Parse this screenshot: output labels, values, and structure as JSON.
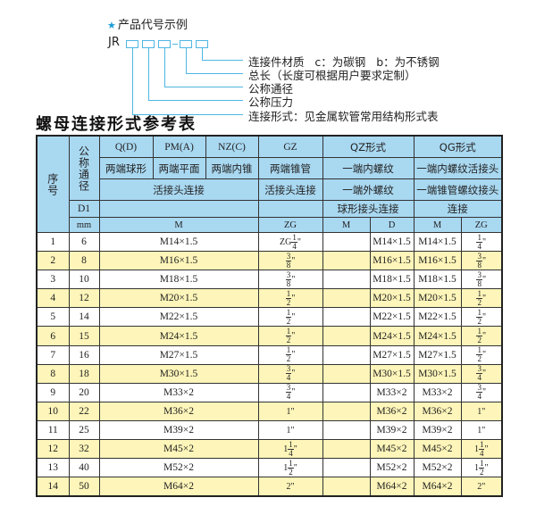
{
  "code_example": {
    "title": "产品代号示例",
    "prefix": "JR",
    "labels": [
      "连接件材质   c：为碳钢   b：为不锈钢",
      "总长（长度可根据用户要求定制）",
      "公称通径",
      "公称压力",
      "连接形式：见金属软管常用结构形式表"
    ],
    "accent_color": "#4fb6e3"
  },
  "table_title": "螺母连接形式参考表",
  "header": {
    "seq": "序号",
    "nominal": "公称通径",
    "d1": "D1",
    "mm": "mm",
    "qd": "Q(D)",
    "pm": "PM(A)",
    "nz": "NZ(C)",
    "gz": "GZ",
    "qz": "QZ形式",
    "qg": "QG形式",
    "qd_desc": "两端球形",
    "pm_desc": "两端平面",
    "nz_desc": "两端内锥",
    "gz_desc": "两端锥管",
    "qz_desc1": "一端内螺纹",
    "qg_desc1": "一端内螺纹活接头",
    "union1": "活接头连接",
    "union2": "活接头连接",
    "qz_desc2": "一端外螺纹",
    "qg_desc2": "一端锥管螺纹接头",
    "qz_desc3": "球形接头连接",
    "qg_desc3": "连接",
    "m": "M",
    "zg": "ZG",
    "qz_m": "M",
    "qz_d": "D",
    "qg_m": "M",
    "qg_zg": "ZG"
  },
  "rows": [
    {
      "no": "1",
      "d1": "6",
      "m": "M14×1.5",
      "zg": {
        "pre": "ZG",
        "num": "1",
        "den": "4",
        "suf": "\""
      },
      "qz_m": "",
      "qz_d": "M14×1.5",
      "qg_m": "M14×1.5",
      "qg_zg": {
        "pre": "",
        "num": "1",
        "den": "4",
        "suf": "\""
      }
    },
    {
      "no": "2",
      "d1": "8",
      "m": "M16×1.5",
      "zg": {
        "pre": "",
        "num": "3",
        "den": "8",
        "suf": "\""
      },
      "qz_m": "",
      "qz_d": "M16×1.5",
      "qg_m": "M16×1.5",
      "qg_zg": {
        "pre": "",
        "num": "3",
        "den": "8",
        "suf": "\""
      }
    },
    {
      "no": "3",
      "d1": "10",
      "m": "M18×1.5",
      "zg": {
        "pre": "",
        "num": "3",
        "den": "8",
        "suf": "\""
      },
      "qz_m": "",
      "qz_d": "M18×1.5",
      "qg_m": "M18×1.5",
      "qg_zg": {
        "pre": "",
        "num": "3",
        "den": "8",
        "suf": "\""
      }
    },
    {
      "no": "4",
      "d1": "12",
      "m": "M20×1.5",
      "zg": {
        "pre": "",
        "num": "1",
        "den": "2",
        "suf": "\""
      },
      "qz_m": "",
      "qz_d": "M20×1.5",
      "qg_m": "M20×1.5",
      "qg_zg": {
        "pre": "",
        "num": "1",
        "den": "2",
        "suf": "\""
      }
    },
    {
      "no": "5",
      "d1": "14",
      "m": "M22×1.5",
      "zg": {
        "pre": "",
        "num": "1",
        "den": "2",
        "suf": "\""
      },
      "qz_m": "",
      "qz_d": "M22×1.5",
      "qg_m": "M22×1.5",
      "qg_zg": {
        "pre": "",
        "num": "1",
        "den": "2",
        "suf": "\""
      }
    },
    {
      "no": "6",
      "d1": "15",
      "m": "M24×1.5",
      "zg": {
        "pre": "",
        "num": "1",
        "den": "2",
        "suf": "\""
      },
      "qz_m": "",
      "qz_d": "M24×1.5",
      "qg_m": "M24×1.5",
      "qg_zg": {
        "pre": "",
        "num": "1",
        "den": "2",
        "suf": "\""
      }
    },
    {
      "no": "7",
      "d1": "16",
      "m": "M27×1.5",
      "zg": {
        "pre": "",
        "num": "1",
        "den": "2",
        "suf": "\""
      },
      "qz_m": "",
      "qz_d": "M27×1.5",
      "qg_m": "M27×1.5",
      "qg_zg": {
        "pre": "",
        "num": "1",
        "den": "2",
        "suf": "\""
      }
    },
    {
      "no": "8",
      "d1": "18",
      "m": "M30×1.5",
      "zg": {
        "pre": "",
        "num": "3",
        "den": "4",
        "suf": "\""
      },
      "qz_m": "",
      "qz_d": "M30×1.5",
      "qg_m": "M30×1.5",
      "qg_zg": {
        "pre": "",
        "num": "3",
        "den": "4",
        "suf": "\""
      }
    },
    {
      "no": "9",
      "d1": "20",
      "m": "M33×2",
      "zg": {
        "pre": "",
        "num": "3",
        "den": "4",
        "suf": "\""
      },
      "qz_m": "",
      "qz_d": "M33×2",
      "qg_m": "M33×2",
      "qg_zg": {
        "pre": "",
        "num": "3",
        "den": "4",
        "suf": "\""
      }
    },
    {
      "no": "10",
      "d1": "22",
      "m": "M36×2",
      "zg": {
        "pre": "1\"",
        "num": "",
        "den": "",
        "suf": ""
      },
      "qz_m": "",
      "qz_d": "M36×2",
      "qg_m": "M36×2",
      "qg_zg": {
        "pre": "1\"",
        "num": "",
        "den": "",
        "suf": ""
      }
    },
    {
      "no": "11",
      "d1": "25",
      "m": "M39×2",
      "zg": {
        "pre": "1\"",
        "num": "",
        "den": "",
        "suf": ""
      },
      "qz_m": "",
      "qz_d": "M39×2",
      "qg_m": "M39×2",
      "qg_zg": {
        "pre": "1\"",
        "num": "",
        "den": "",
        "suf": ""
      }
    },
    {
      "no": "12",
      "d1": "32",
      "m": "M45×2",
      "zg": {
        "pre": "1",
        "num": "1",
        "den": "4",
        "suf": "\""
      },
      "qz_m": "",
      "qz_d": "M45×2",
      "qg_m": "M45×2",
      "qg_zg": {
        "pre": "1",
        "num": "1",
        "den": "4",
        "suf": "\""
      }
    },
    {
      "no": "13",
      "d1": "40",
      "m": "M52×2",
      "zg": {
        "pre": "1",
        "num": "1",
        "den": "2",
        "suf": "\""
      },
      "qz_m": "",
      "qz_d": "M52×2",
      "qg_m": "M52×2",
      "qg_zg": {
        "pre": "1",
        "num": "1",
        "den": "2",
        "suf": "\""
      }
    },
    {
      "no": "14",
      "d1": "50",
      "m": "M64×2",
      "zg": {
        "pre": "2\"",
        "num": "",
        "den": "",
        "suf": ""
      },
      "qz_m": "",
      "qz_d": "M64×2",
      "qg_m": "M64×2",
      "qg_zg": {
        "pre": "2\"",
        "num": "",
        "den": "",
        "suf": ""
      }
    }
  ],
  "colors": {
    "header_bg": "#a9d8f1",
    "row_alt": "#fdf5b9",
    "star": "#1a9bd7"
  }
}
